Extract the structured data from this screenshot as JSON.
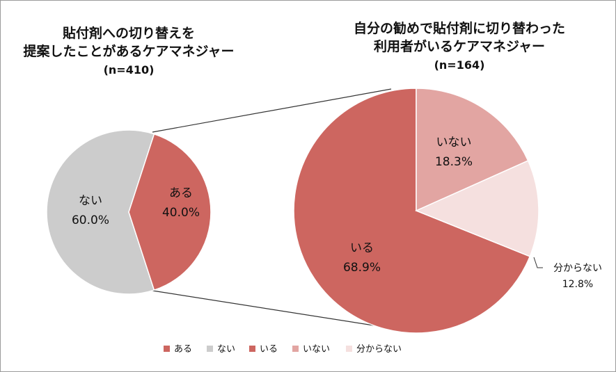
{
  "colors": {
    "aru": "#cd6660",
    "nai": "#cccccc",
    "iru": "#cd6660",
    "inai": "#e2a5a2",
    "wakaranai": "#f5e0df",
    "connector": "#333333",
    "pie_stroke": "#ffffff"
  },
  "chart_data": [
    {
      "type": "pie",
      "title_line1": "貼付剤への切り替えを",
      "title_line2": "提案したことがあるケアマネジャー",
      "n_label": "(n=410)",
      "slices": [
        {
          "key": "aru",
          "label": "ある",
          "value": 40.0,
          "value_text": "40.0%"
        },
        {
          "key": "nai",
          "label": "ない",
          "value": 60.0,
          "value_text": "60.0%"
        }
      ]
    },
    {
      "type": "pie",
      "title_line1": "自分の勧めで貼付剤に切り替わった",
      "title_line2": "利用者がいるケアマネジャー",
      "n_label": "(n=164)",
      "slices": [
        {
          "key": "inai",
          "label": "いない",
          "value": 18.3,
          "value_text": "18.3%"
        },
        {
          "key": "wakaranai",
          "label": "分からない",
          "value": 12.8,
          "value_text": "12.8%"
        },
        {
          "key": "iru",
          "label": "いる",
          "value": 68.9,
          "value_text": "68.9%"
        }
      ]
    }
  ],
  "legend": [
    {
      "key": "aru",
      "label": "ある"
    },
    {
      "key": "nai",
      "label": "ない"
    },
    {
      "key": "iru",
      "label": "いる"
    },
    {
      "key": "inai",
      "label": "いない"
    },
    {
      "key": "wakaranai",
      "label": "分からない"
    }
  ]
}
